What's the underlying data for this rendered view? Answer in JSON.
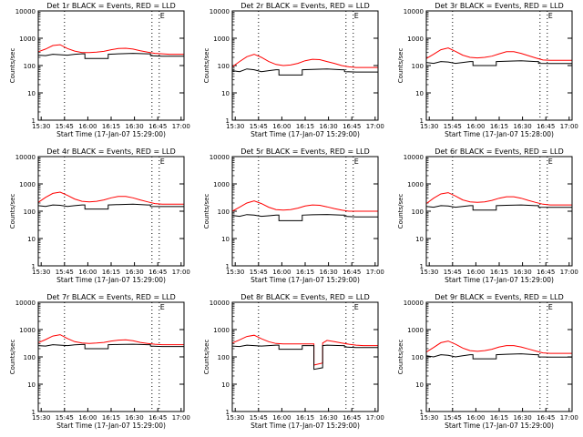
{
  "chart_data": [
    {
      "type": "line",
      "title": "Det 1r BLACK = Events, RED = LLD",
      "xlabel": "Start Time (17-Jan-07 15:29:00)",
      "ylabel": "Counts/sec",
      "xticks": [
        "15:30",
        "15:45",
        "16:00",
        "16:15",
        "16:30",
        "16:45",
        "17:00"
      ],
      "yticks": [
        "1",
        "10",
        "100",
        "1000",
        "10000"
      ],
      "yscale": "log",
      "ylim": [
        1,
        10000
      ],
      "xlim": [
        0,
        100
      ],
      "marker_label": "E",
      "series": [
        {
          "name": "LLD",
          "color": "#ff0000",
          "x": [
            0,
            5,
            10,
            15,
            20,
            25,
            30,
            35,
            40,
            45,
            50,
            55,
            60,
            65,
            70,
            75,
            80,
            85,
            90,
            100
          ],
          "y": [
            320,
            400,
            540,
            580,
            420,
            340,
            300,
            300,
            310,
            330,
            380,
            420,
            430,
            400,
            350,
            310,
            280,
            270,
            260,
            260
          ]
        },
        {
          "name": "Events",
          "color": "#000000",
          "x": [
            0,
            5,
            10,
            15,
            20,
            25,
            30,
            32,
            32,
            40,
            48,
            48,
            55,
            65,
            75,
            77,
            77,
            85,
            90,
            100
          ],
          "y": [
            240,
            230,
            260,
            250,
            240,
            260,
            270,
            270,
            180,
            180,
            180,
            260,
            270,
            280,
            270,
            270,
            230,
            220,
            220,
            220
          ]
        }
      ]
    },
    {
      "type": "line",
      "title": "Det 2r BLACK = Events, RED = LLD",
      "xlabel": "Start Time (17-Jan-07 15:29:00)",
      "ylabel": "Counts/sec",
      "xticks": [
        "15:30",
        "15:45",
        "16:00",
        "16:15",
        "16:30",
        "16:45",
        "17:00"
      ],
      "yticks": [
        "1",
        "10",
        "100",
        "1000",
        "10000"
      ],
      "yscale": "log",
      "ylim": [
        1,
        10000
      ],
      "xlim": [
        0,
        100
      ],
      "marker_label": "E",
      "series": [
        {
          "name": "LLD",
          "color": "#ff0000",
          "x": [
            0,
            5,
            10,
            15,
            20,
            25,
            30,
            35,
            40,
            45,
            50,
            55,
            60,
            65,
            70,
            75,
            80,
            85,
            90,
            100
          ],
          "y": [
            90,
            140,
            210,
            260,
            200,
            140,
            110,
            100,
            105,
            120,
            150,
            170,
            165,
            140,
            120,
            100,
            90,
            85,
            85,
            85
          ]
        },
        {
          "name": "Events",
          "color": "#000000",
          "x": [
            0,
            5,
            10,
            15,
            20,
            25,
            30,
            32,
            32,
            40,
            48,
            48,
            55,
            65,
            75,
            77,
            77,
            85,
            90,
            100
          ],
          "y": [
            65,
            60,
            75,
            70,
            60,
            65,
            70,
            70,
            45,
            45,
            45,
            70,
            72,
            75,
            70,
            70,
            60,
            58,
            58,
            58
          ]
        }
      ]
    },
    {
      "type": "line",
      "title": "Det 3r BLACK = Events, RED = LLD",
      "xlabel": "Start Time (17-Jan-07 15:28:00)",
      "ylabel": "Counts/sec",
      "xticks": [
        "15:30",
        "15:45",
        "16:00",
        "16:15",
        "16:30",
        "16:45",
        "17:00"
      ],
      "yticks": [
        "1",
        "10",
        "100",
        "1000",
        "10000"
      ],
      "yscale": "log",
      "ylim": [
        1,
        10000
      ],
      "xlim": [
        0,
        100
      ],
      "marker_label": "E",
      "series": [
        {
          "name": "LLD",
          "color": "#ff0000",
          "x": [
            0,
            5,
            10,
            15,
            20,
            25,
            30,
            35,
            40,
            45,
            50,
            55,
            60,
            65,
            70,
            75,
            80,
            85,
            90,
            100
          ],
          "y": [
            180,
            260,
            380,
            440,
            330,
            240,
            200,
            190,
            200,
            220,
            270,
            320,
            320,
            280,
            230,
            190,
            160,
            155,
            155,
            155
          ]
        },
        {
          "name": "Events",
          "color": "#000000",
          "x": [
            0,
            5,
            10,
            15,
            20,
            25,
            30,
            32,
            32,
            40,
            48,
            48,
            55,
            65,
            75,
            77,
            77,
            85,
            90,
            100
          ],
          "y": [
            130,
            120,
            140,
            135,
            120,
            130,
            140,
            140,
            100,
            100,
            100,
            140,
            145,
            150,
            140,
            140,
            120,
            118,
            118,
            118
          ]
        }
      ]
    },
    {
      "type": "line",
      "title": "Det 4r BLACK = Events, RED = LLD",
      "xlabel": "Start Time (17-Jan-07 15:29:00)",
      "ylabel": "Counts/sec",
      "xticks": [
        "15:30",
        "15:45",
        "16:00",
        "16:15",
        "16:30",
        "16:45",
        "17:00"
      ],
      "yticks": [
        "1",
        "10",
        "100",
        "1000",
        "10000"
      ],
      "yscale": "log",
      "ylim": [
        1,
        10000
      ],
      "xlim": [
        0,
        100
      ],
      "marker_label": "E",
      "series": [
        {
          "name": "LLD",
          "color": "#ff0000",
          "x": [
            0,
            5,
            10,
            15,
            20,
            25,
            30,
            35,
            40,
            45,
            50,
            55,
            60,
            65,
            70,
            75,
            80,
            85,
            90,
            100
          ],
          "y": [
            210,
            320,
            450,
            500,
            380,
            280,
            230,
            220,
            230,
            260,
            310,
            350,
            350,
            310,
            260,
            220,
            190,
            180,
            180,
            180
          ]
        },
        {
          "name": "Events",
          "color": "#000000",
          "x": [
            0,
            5,
            10,
            15,
            20,
            25,
            30,
            32,
            32,
            40,
            48,
            48,
            55,
            65,
            75,
            77,
            77,
            85,
            90,
            100
          ],
          "y": [
            160,
            150,
            170,
            165,
            150,
            160,
            170,
            170,
            120,
            120,
            120,
            170,
            175,
            180,
            170,
            170,
            150,
            148,
            148,
            148
          ]
        }
      ]
    },
    {
      "type": "line",
      "title": "Det 5r BLACK = Events, RED = LLD",
      "xlabel": "Start Time (17-Jan-07 15:29:00)",
      "ylabel": "Counts/sec",
      "xticks": [
        "15:30",
        "15:45",
        "16:00",
        "16:15",
        "16:30",
        "16:45",
        "17:00"
      ],
      "yticks": [
        "1",
        "10",
        "100",
        "1000",
        "10000"
      ],
      "yscale": "log",
      "ylim": [
        1,
        10000
      ],
      "xlim": [
        0,
        100
      ],
      "marker_label": "E",
      "series": [
        {
          "name": "LLD",
          "color": "#ff0000",
          "x": [
            0,
            5,
            10,
            15,
            20,
            25,
            30,
            35,
            40,
            45,
            50,
            55,
            60,
            65,
            70,
            75,
            80,
            85,
            90,
            100
          ],
          "y": [
            100,
            140,
            200,
            240,
            190,
            140,
            115,
            110,
            115,
            130,
            155,
            170,
            165,
            145,
            125,
            110,
            100,
            100,
            100,
            100
          ]
        },
        {
          "name": "Events",
          "color": "#000000",
          "x": [
            0,
            5,
            10,
            15,
            20,
            25,
            30,
            32,
            32,
            40,
            48,
            48,
            55,
            65,
            75,
            77,
            77,
            85,
            90,
            100
          ],
          "y": [
            70,
            65,
            75,
            72,
            65,
            68,
            72,
            72,
            45,
            45,
            45,
            72,
            74,
            76,
            72,
            72,
            65,
            62,
            62,
            62
          ]
        }
      ]
    },
    {
      "type": "line",
      "title": "Det 6r BLACK = Events, RED = LLD",
      "xlabel": "Start Time (17-Jan-07 15:29:00)",
      "ylabel": "Counts/sec",
      "xticks": [
        "15:30",
        "15:45",
        "16:00",
        "16:15",
        "16:30",
        "16:45",
        "17:00"
      ],
      "yticks": [
        "1",
        "10",
        "100",
        "1000",
        "10000"
      ],
      "yscale": "log",
      "ylim": [
        1,
        10000
      ],
      "xlim": [
        0,
        100
      ],
      "marker_label": "E",
      "series": [
        {
          "name": "LLD",
          "color": "#ff0000",
          "x": [
            0,
            5,
            10,
            15,
            20,
            25,
            30,
            35,
            40,
            45,
            50,
            55,
            60,
            65,
            70,
            75,
            80,
            85,
            90,
            100
          ],
          "y": [
            190,
            300,
            430,
            480,
            360,
            260,
            220,
            210,
            220,
            250,
            300,
            340,
            340,
            300,
            250,
            210,
            180,
            170,
            170,
            170
          ]
        },
        {
          "name": "Events",
          "color": "#000000",
          "x": [
            0,
            5,
            10,
            15,
            20,
            25,
            30,
            32,
            32,
            40,
            48,
            48,
            55,
            65,
            75,
            77,
            77,
            85,
            90,
            100
          ],
          "y": [
            150,
            140,
            160,
            155,
            140,
            150,
            160,
            160,
            110,
            110,
            110,
            160,
            165,
            170,
            160,
            160,
            140,
            138,
            138,
            138
          ]
        }
      ]
    },
    {
      "type": "line",
      "title": "Det 7r BLACK = Events, RED = LLD",
      "xlabel": "Start Time (17-Jan-07 15:29:00)",
      "ylabel": "Counts/sec",
      "xticks": [
        "15:30",
        "15:45",
        "16:00",
        "16:15",
        "16:30",
        "16:45",
        "17:00"
      ],
      "yticks": [
        "1",
        "10",
        "100",
        "1000",
        "10000"
      ],
      "yscale": "log",
      "ylim": [
        1,
        10000
      ],
      "xlim": [
        0,
        100
      ],
      "marker_label": "E",
      "series": [
        {
          "name": "LLD",
          "color": "#ff0000",
          "x": [
            0,
            5,
            10,
            15,
            20,
            25,
            30,
            35,
            40,
            45,
            50,
            55,
            60,
            65,
            70,
            75,
            80,
            85,
            90,
            100
          ],
          "y": [
            330,
            430,
            580,
            650,
            470,
            360,
            320,
            310,
            320,
            340,
            380,
            410,
            420,
            390,
            340,
            310,
            290,
            280,
            280,
            280
          ]
        },
        {
          "name": "Events",
          "color": "#000000",
          "x": [
            0,
            5,
            10,
            15,
            20,
            25,
            30,
            32,
            32,
            40,
            48,
            48,
            55,
            65,
            75,
            77,
            77,
            85,
            90,
            100
          ],
          "y": [
            260,
            250,
            280,
            270,
            260,
            275,
            285,
            285,
            200,
            200,
            200,
            280,
            285,
            290,
            280,
            280,
            250,
            240,
            240,
            240
          ]
        }
      ]
    },
    {
      "type": "line",
      "title": "Det 8r BLACK = Events, RED = LLD",
      "xlabel": "Start Time (17-Jan-07 15:29:00)",
      "ylabel": "Counts/sec",
      "xticks": [
        "15:30",
        "15:45",
        "16:00",
        "16:15",
        "16:30",
        "16:45",
        "17:00"
      ],
      "yticks": [
        "1",
        "10",
        "100",
        "1000",
        "10000"
      ],
      "yscale": "log",
      "ylim": [
        1,
        10000
      ],
      "xlim": [
        0,
        100
      ],
      "marker_label": "E",
      "series": [
        {
          "name": "LLD",
          "color": "#ff0000",
          "x": [
            0,
            5,
            10,
            15,
            20,
            25,
            30,
            35,
            40,
            45,
            50,
            55,
            56,
            56,
            62,
            62,
            65,
            70,
            75,
            80,
            85,
            90,
            100
          ],
          "y": [
            320,
            420,
            560,
            620,
            460,
            360,
            310,
            300,
            300,
            300,
            300,
            300,
            300,
            50,
            60,
            320,
            400,
            360,
            320,
            290,
            270,
            260,
            260
          ]
        },
        {
          "name": "Events",
          "color": "#000000",
          "x": [
            0,
            5,
            10,
            15,
            20,
            25,
            30,
            32,
            32,
            40,
            48,
            48,
            54,
            54,
            56,
            56,
            62,
            62,
            65,
            75,
            77,
            77,
            85,
            90,
            100
          ],
          "y": [
            250,
            240,
            270,
            260,
            250,
            260,
            270,
            270,
            190,
            190,
            190,
            260,
            260,
            260,
            260,
            35,
            40,
            260,
            270,
            260,
            260,
            230,
            220,
            220,
            220
          ]
        }
      ]
    },
    {
      "type": "line",
      "title": "Det 9r BLACK = Events, RED = LLD",
      "xlabel": "Start Time (17-Jan-07 15:29:00)",
      "ylabel": "Counts/sec",
      "xticks": [
        "15:30",
        "15:45",
        "16:00",
        "16:15",
        "16:30",
        "16:45",
        "17:00"
      ],
      "yticks": [
        "1",
        "10",
        "100",
        "1000",
        "10000"
      ],
      "yscale": "log",
      "ylim": [
        1,
        10000
      ],
      "xlim": [
        0,
        100
      ],
      "marker_label": "E",
      "series": [
        {
          "name": "LLD",
          "color": "#ff0000",
          "x": [
            0,
            5,
            10,
            15,
            20,
            25,
            30,
            35,
            40,
            45,
            50,
            55,
            60,
            65,
            70,
            75,
            80,
            85,
            90,
            100
          ],
          "y": [
            150,
            220,
            330,
            380,
            290,
            210,
            170,
            160,
            170,
            190,
            230,
            260,
            260,
            230,
            195,
            165,
            140,
            135,
            135,
            135
          ]
        },
        {
          "name": "Events",
          "color": "#000000",
          "x": [
            0,
            5,
            10,
            15,
            20,
            25,
            30,
            32,
            32,
            40,
            48,
            48,
            55,
            65,
            75,
            77,
            77,
            85,
            90,
            100
          ],
          "y": [
            110,
            100,
            120,
            115,
            100,
            110,
            120,
            120,
            85,
            85,
            85,
            120,
            125,
            130,
            120,
            120,
            100,
            98,
            98,
            98
          ]
        }
      ]
    }
  ]
}
